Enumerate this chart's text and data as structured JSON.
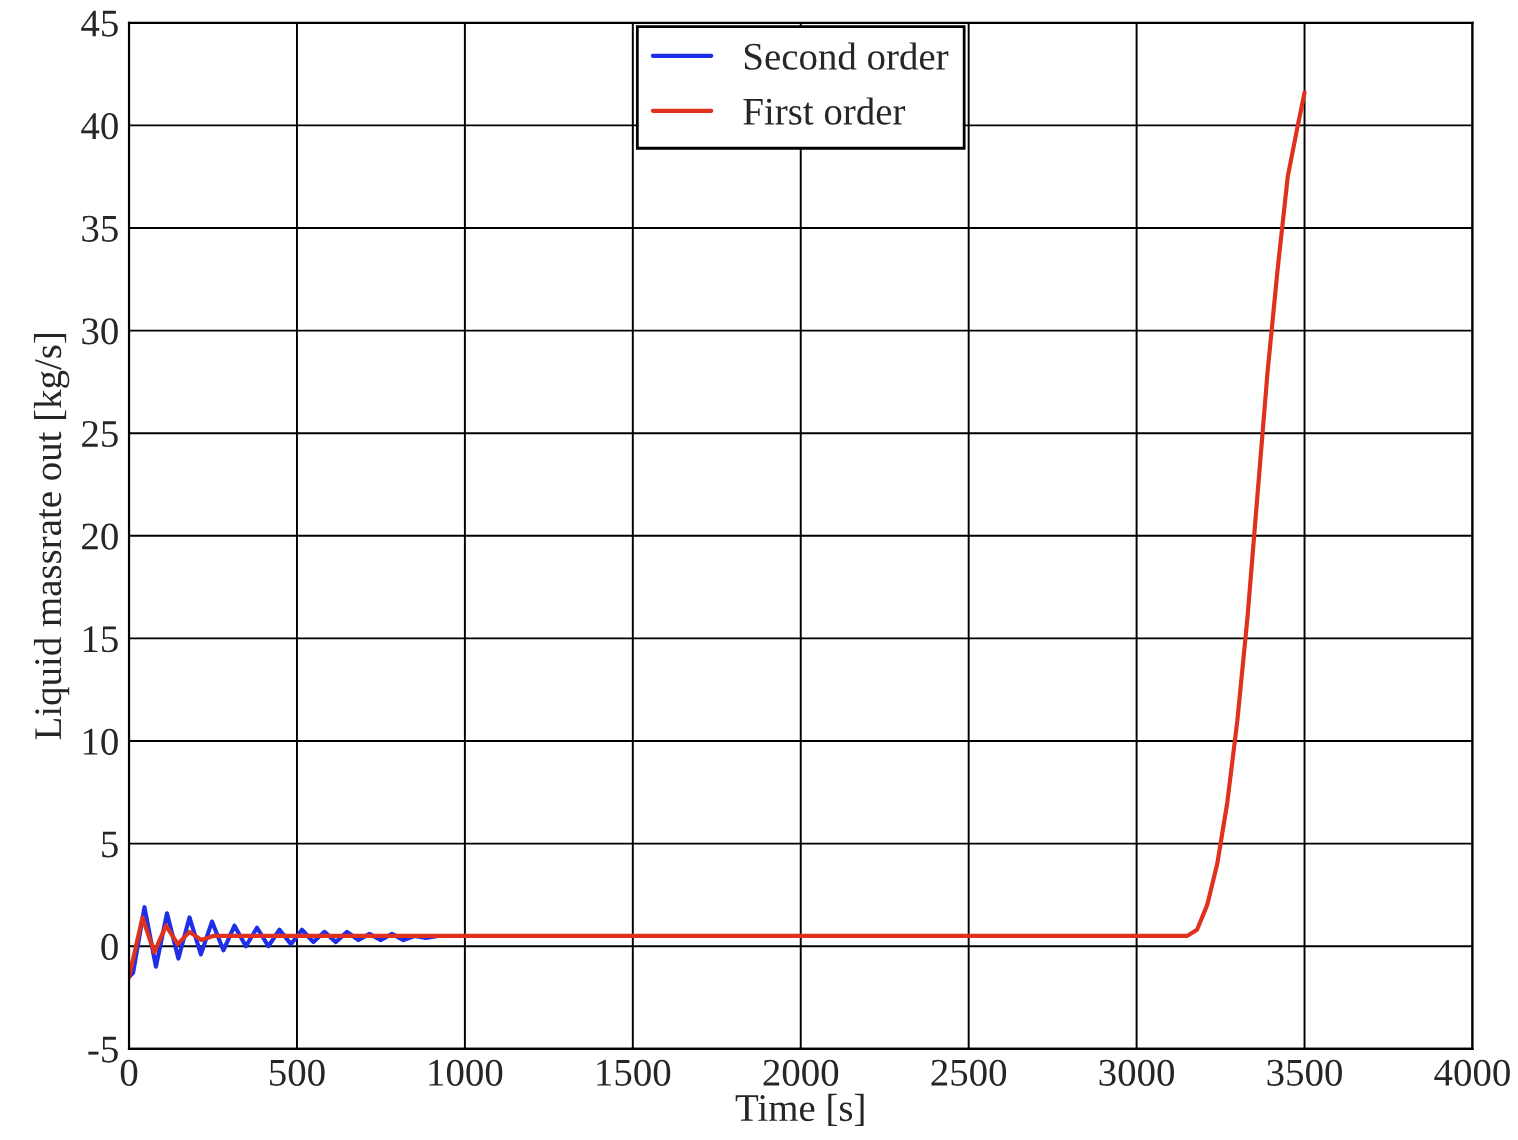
{
  "chart_data": {
    "type": "line",
    "xlabel": "Time [s]",
    "ylabel": "Liquid massrate out [kg/s]",
    "xlim": [
      0,
      4000
    ],
    "ylim": [
      -5,
      45
    ],
    "xticks": [
      0,
      500,
      1000,
      1500,
      2000,
      2500,
      3000,
      3500,
      4000
    ],
    "yticks": [
      -5,
      0,
      5,
      10,
      15,
      20,
      25,
      30,
      35,
      40,
      45
    ],
    "grid": true,
    "legend": "top",
    "line_style": "solid",
    "marker": "none",
    "series": [
      {
        "name": "Second order",
        "color": "#1f2fe8",
        "x": [
          0,
          12,
          46,
          80,
          113,
          147,
          180,
          214,
          247,
          281,
          314,
          348,
          381,
          415,
          448,
          482,
          515,
          549,
          582,
          616,
          649,
          683,
          716,
          750,
          783,
          817,
          850,
          884,
          920
        ],
        "values": [
          -1.5,
          -1.3,
          1.9,
          -1.0,
          1.6,
          -0.6,
          1.4,
          -0.4,
          1.2,
          -0.2,
          1.0,
          0.0,
          0.9,
          0.0,
          0.8,
          0.1,
          0.8,
          0.2,
          0.7,
          0.2,
          0.7,
          0.3,
          0.6,
          0.3,
          0.6,
          0.3,
          0.5,
          0.4,
          0.5
        ]
      },
      {
        "name": "First order",
        "color": "#e0301e",
        "x": [
          0,
          40,
          75,
          110,
          145,
          180,
          215,
          250,
          300,
          1000,
          3150,
          3180,
          3210,
          3240,
          3270,
          3300,
          3330,
          3360,
          3390,
          3420,
          3450,
          3480,
          3500
        ],
        "values": [
          -1.5,
          1.4,
          -0.3,
          1.0,
          0.1,
          0.7,
          0.3,
          0.5,
          0.5,
          0.5,
          0.5,
          0.8,
          2,
          4,
          7,
          11,
          16,
          22,
          28,
          33,
          37.5,
          40,
          41.6
        ]
      }
    ]
  }
}
